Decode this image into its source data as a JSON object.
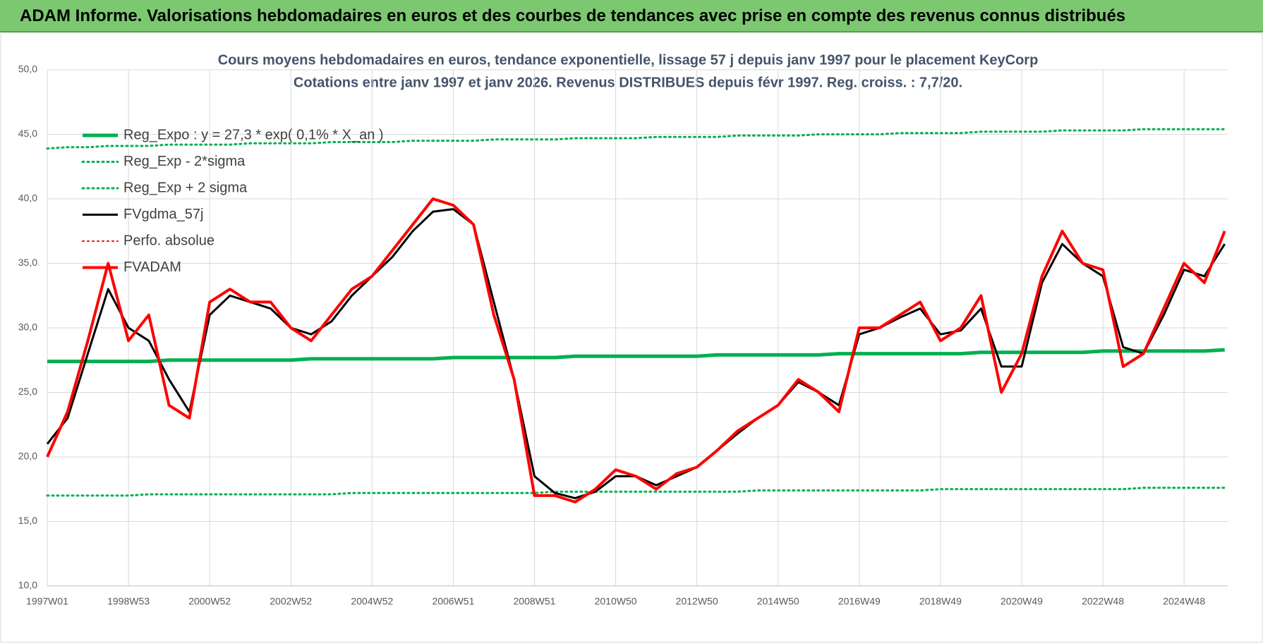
{
  "header": {
    "title": "ADAM Informe. Valorisations hebdomadaires en euros et des courbes de tendances avec prise en compte des revenus connus distribués"
  },
  "chart_data": {
    "type": "line",
    "title": "Cours moyens hebdomadaires en euros, tendance exponentielle, lissage 57 j depuis janv 1997 pour le placement KeyCorp",
    "subtitle": "Cotations entre janv 1997 et janv 2026. Revenus DISTRIBUES depuis févr 1997. Reg. croiss. : 7,7/20.",
    "categories": [
      "1997W01",
      null,
      null,
      null,
      "1998W53",
      null,
      null,
      null,
      "2000W52",
      null,
      null,
      null,
      "2002W52",
      null,
      null,
      null,
      "2004W52",
      null,
      null,
      null,
      "2006W51",
      null,
      null,
      null,
      "2008W51",
      null,
      null,
      null,
      "2010W50",
      null,
      null,
      null,
      "2012W50",
      null,
      null,
      null,
      "2014W50",
      null,
      null,
      null,
      "2016W49",
      null,
      null,
      null,
      "2018W49",
      null,
      null,
      null,
      "2020W49",
      null,
      null,
      null,
      "2022W48",
      null,
      null,
      null,
      "2024W48",
      null,
      null
    ],
    "ylim": [
      10,
      50
    ],
    "yticks": [
      {
        "value": 10,
        "label": "10,0"
      },
      {
        "value": 15,
        "label": "15,0"
      },
      {
        "value": 20,
        "label": "20,0"
      },
      {
        "value": 25,
        "label": "25,0"
      },
      {
        "value": 30,
        "label": "30,0"
      },
      {
        "value": 35,
        "label": "35,0"
      },
      {
        "value": 40,
        "label": "40,0"
      },
      {
        "value": 45,
        "label": "45,0"
      },
      {
        "value": 50,
        "label": "50,0"
      }
    ],
    "grid": true,
    "legend": "upper left",
    "series": [
      {
        "name": "Reg_Expo : y = 27,3 * exp( 0,1% *  X_an )",
        "color": "#00b050",
        "style": "solid",
        "width": 5,
        "values": [
          27.4,
          27.4,
          27.4,
          27.4,
          27.4,
          27.4,
          27.5,
          27.5,
          27.5,
          27.5,
          27.5,
          27.5,
          27.5,
          27.6,
          27.6,
          27.6,
          27.6,
          27.6,
          27.6,
          27.6,
          27.7,
          27.7,
          27.7,
          27.7,
          27.7,
          27.7,
          27.8,
          27.8,
          27.8,
          27.8,
          27.8,
          27.8,
          27.8,
          27.9,
          27.9,
          27.9,
          27.9,
          27.9,
          27.9,
          28.0,
          28.0,
          28.0,
          28.0,
          28.0,
          28.0,
          28.0,
          28.1,
          28.1,
          28.1,
          28.1,
          28.1,
          28.1,
          28.2,
          28.2,
          28.2,
          28.2,
          28.2,
          28.2,
          28.3
        ]
      },
      {
        "name": "Reg_Exp - 2*sigma",
        "color": "#00b050",
        "style": "dotted",
        "width": 3,
        "values": [
          17.0,
          17.0,
          17.0,
          17.0,
          17.0,
          17.1,
          17.1,
          17.1,
          17.1,
          17.1,
          17.1,
          17.1,
          17.1,
          17.1,
          17.1,
          17.2,
          17.2,
          17.2,
          17.2,
          17.2,
          17.2,
          17.2,
          17.2,
          17.2,
          17.2,
          17.3,
          17.3,
          17.3,
          17.3,
          17.3,
          17.3,
          17.3,
          17.3,
          17.3,
          17.3,
          17.4,
          17.4,
          17.4,
          17.4,
          17.4,
          17.4,
          17.4,
          17.4,
          17.4,
          17.5,
          17.5,
          17.5,
          17.5,
          17.5,
          17.5,
          17.5,
          17.5,
          17.5,
          17.5,
          17.6,
          17.6,
          17.6,
          17.6,
          17.6
        ]
      },
      {
        "name": "Reg_Exp + 2 sigma",
        "color": "#00b050",
        "style": "dotted",
        "width": 3,
        "values": [
          43.9,
          44.0,
          44.0,
          44.1,
          44.1,
          44.1,
          44.2,
          44.2,
          44.2,
          44.2,
          44.3,
          44.3,
          44.3,
          44.3,
          44.4,
          44.4,
          44.4,
          44.4,
          44.5,
          44.5,
          44.5,
          44.5,
          44.6,
          44.6,
          44.6,
          44.6,
          44.7,
          44.7,
          44.7,
          44.7,
          44.8,
          44.8,
          44.8,
          44.8,
          44.9,
          44.9,
          44.9,
          44.9,
          45.0,
          45.0,
          45.0,
          45.0,
          45.1,
          45.1,
          45.1,
          45.1,
          45.2,
          45.2,
          45.2,
          45.2,
          45.3,
          45.3,
          45.3,
          45.3,
          45.4,
          45.4,
          45.4,
          45.4,
          45.4
        ]
      },
      {
        "name": "FVgdma_57j",
        "color": "#000000",
        "style": "solid",
        "width": 3,
        "values": [
          21,
          23,
          28,
          33,
          30,
          29,
          26,
          23.5,
          31,
          32.5,
          32,
          31.5,
          30,
          29.5,
          30.5,
          32.5,
          34,
          35.5,
          37.5,
          39,
          39.2,
          38,
          32,
          26,
          18.5,
          17.2,
          16.8,
          17.3,
          18.5,
          18.5,
          17.8,
          18.5,
          19.2,
          20.5,
          21.8,
          23,
          24,
          25.8,
          25,
          24,
          29.5,
          30,
          30.8,
          31.5,
          29.5,
          29.8,
          31.5,
          27,
          27,
          33.5,
          36.5,
          35,
          34,
          28.5,
          28,
          31,
          34.5,
          34,
          36.5
        ]
      },
      {
        "name": "Perfo. absolue",
        "color": "#ff0000",
        "style": "dotted",
        "width": 2,
        "values": [
          null,
          null,
          null,
          null,
          null,
          null,
          null,
          null,
          null,
          null,
          null,
          null,
          null,
          null,
          null,
          null,
          null,
          null,
          null,
          null,
          null,
          null,
          null,
          null,
          null,
          null,
          null,
          null,
          null,
          null,
          null,
          null,
          null,
          null,
          null,
          null,
          null,
          null,
          null,
          null,
          null,
          null,
          null,
          null,
          null,
          null,
          null,
          null,
          null,
          null,
          null,
          null,
          null,
          null,
          null,
          null,
          null,
          null,
          null
        ]
      },
      {
        "name": "FVADAM",
        "color": "#ff0000",
        "style": "solid",
        "width": 4,
        "values": [
          20,
          23.5,
          29,
          35,
          29,
          31,
          24,
          23,
          32,
          33,
          32,
          32,
          30,
          29,
          31,
          33,
          34,
          36,
          38,
          40,
          39.5,
          38,
          31,
          26,
          17,
          17,
          16.5,
          17.5,
          19,
          18.5,
          17.5,
          18.7,
          19.2,
          20.5,
          22,
          23,
          24,
          26,
          25,
          23.5,
          30,
          30,
          31,
          32,
          29,
          30,
          32.5,
          25,
          28,
          34,
          37.5,
          35,
          34.5,
          27,
          28,
          31.5,
          35,
          33.5,
          37.5
        ]
      }
    ]
  }
}
